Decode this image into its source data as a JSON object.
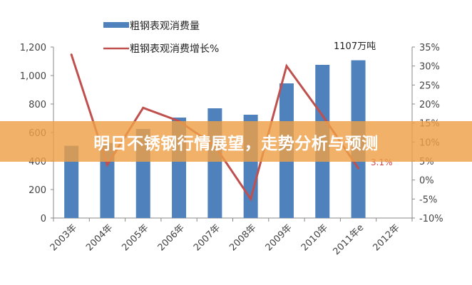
{
  "banner": {
    "title": "明日不锈钢行情展望，走势分析与预测"
  },
  "chart_data": {
    "type": "bar+line",
    "categories": [
      "2003年",
      "2004年",
      "2005年",
      "2006年",
      "2007年",
      "2008年",
      "2009年",
      "2010年",
      "2011年e",
      "2012年"
    ],
    "series": [
      {
        "name": "粗钢表观消费量",
        "type": "bar",
        "axis": "left",
        "color": "#4f81bd",
        "values": [
          507,
          527,
          625,
          705,
          770,
          725,
          945,
          1075,
          1107,
          null
        ]
      },
      {
        "name": "粗钢表观消费增长%",
        "type": "line",
        "axis": "right",
        "color": "#c0504d",
        "values": [
          33,
          4,
          19,
          15.5,
          9,
          -5,
          30,
          17,
          3.1,
          null
        ]
      }
    ],
    "left_axis": {
      "ylim": [
        0,
        1200
      ],
      "ticks": [
        "0",
        "200",
        "400",
        "600",
        "800",
        "1,000",
        "1,200"
      ]
    },
    "right_axis": {
      "ylim": [
        -10,
        35
      ],
      "ticks": [
        "-10%",
        "-5%",
        "0%",
        "5%",
        "10%",
        "15%",
        "20%",
        "25%",
        "30%",
        "35%"
      ]
    },
    "annotations": [
      "1107万吨",
      "3.1%"
    ],
    "legend_position": "top",
    "grid": false
  }
}
